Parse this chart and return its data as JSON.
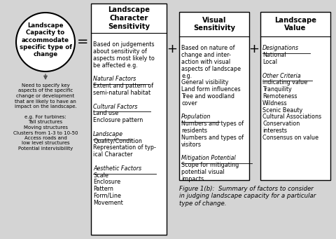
{
  "bg_color": "#d4d4d4",
  "box_color": "#ffffff",
  "box_edge_color": "#000000",
  "text_color": "#000000",
  "caption": "Figure 1(b):  Summary of factors to consider\nin judging landscape capacity for a particular\ntype of change.",
  "circle_text": "Landscape\nCapacity to\naccommodate\nspecific type of\nchange",
  "arrow_text": "Need to specify key\naspects of the specific\nchange or development\nthat are likely to have an\nimpact on the landscape.\n\ne.g. For turbines:\nTall structures\nMoving structures\nClusters from 1-3 to 10-50\nAccess roads and\nlow level structures\nPotential intervisibility",
  "box1_title": "Landscape\nCharacter\nSensitivity",
  "box1_content": [
    [
      "Based on judgements",
      false
    ],
    [
      "about sensitivity of",
      false
    ],
    [
      "aspects most likely to",
      false
    ],
    [
      "be affected e.g.",
      false
    ],
    [
      "",
      false
    ],
    [
      "Natural Factors",
      true
    ],
    [
      "Extent and pattern of",
      false
    ],
    [
      "semi-natural habitat",
      false
    ],
    [
      "",
      false
    ],
    [
      "Cultural Factors",
      true
    ],
    [
      "Land use",
      false
    ],
    [
      "Enclosure pattern",
      false
    ],
    [
      "",
      false
    ],
    [
      "Landscape",
      true
    ],
    [
      "Quality/Condition",
      false
    ],
    [
      "Representation of typ-",
      false
    ],
    [
      "ical Character",
      false
    ],
    [
      "",
      false
    ],
    [
      "Aesthetic Factors",
      true
    ],
    [
      "Scale",
      false
    ],
    [
      "Enclosure",
      false
    ],
    [
      "Pattern",
      false
    ],
    [
      "Form/Line",
      false
    ],
    [
      "Movement",
      false
    ]
  ],
  "box2_title": "Visual\nSensitivity",
  "box2_content": [
    [
      "Based on nature of",
      false
    ],
    [
      "change and inter-",
      false
    ],
    [
      "action with visual",
      false
    ],
    [
      "aspects of landscape",
      false
    ],
    [
      "e.g.",
      false
    ],
    [
      "General visibility",
      false
    ],
    [
      "Land form influences",
      false
    ],
    [
      "Tree and woodland",
      false
    ],
    [
      "cover",
      false
    ],
    [
      "",
      false
    ],
    [
      "Population",
      true
    ],
    [
      "Numbers and types of",
      false
    ],
    [
      "residents",
      false
    ],
    [
      "Numbers and types of",
      false
    ],
    [
      "visitors",
      false
    ],
    [
      "",
      false
    ],
    [
      "Mitigation Potential",
      true
    ],
    [
      "Scope for mitigating",
      false
    ],
    [
      "potential visual",
      false
    ],
    [
      "impacts",
      false
    ]
  ],
  "box3_title": "Landscape\nValue",
  "box3_content": [
    [
      "Designations",
      true
    ],
    [
      "National",
      false
    ],
    [
      "Local",
      false
    ],
    [
      "",
      false
    ],
    [
      "Other Criteria",
      true
    ],
    [
      "indicating value",
      false
    ],
    [
      "Tranquility",
      false
    ],
    [
      "Remoteness",
      false
    ],
    [
      "Wildness",
      false
    ],
    [
      "Scenic Beauty",
      false
    ],
    [
      "Cultural Associations",
      false
    ],
    [
      "Conservation",
      false
    ],
    [
      "interests",
      false
    ],
    [
      "Consensus on value",
      false
    ]
  ]
}
